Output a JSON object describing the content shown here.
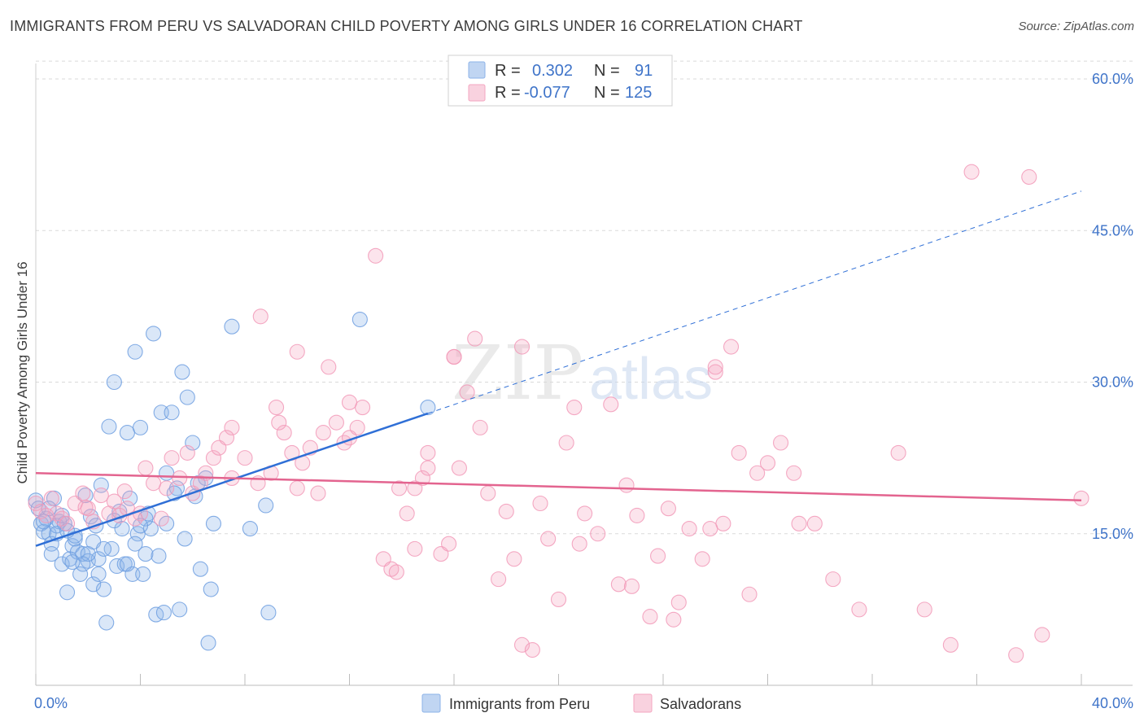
{
  "title": "IMMIGRANTS FROM PERU VS SALVADORAN CHILD POVERTY AMONG GIRLS UNDER 16 CORRELATION CHART",
  "source": "Source: ZipAtlas.com",
  "watermark": {
    "zip": "ZIP",
    "atlas": "atlas"
  },
  "legend_top": {
    "rows": [
      {
        "r_label": "R =",
        "r_value": "0.302",
        "n_label": "N =",
        "n_value": "91",
        "color": "#8db3e8"
      },
      {
        "r_label": "R =",
        "r_value": "-0.077",
        "n_label": "N =",
        "n_value": "125",
        "color": "#f4a6c0"
      }
    ]
  },
  "chart_data": {
    "type": "scatter",
    "xlabel": "",
    "ylabel": "Child Poverty Among Girls Under 16",
    "xlim": [
      0,
      40
    ],
    "ylim": [
      0,
      62
    ],
    "x_tick_labels": [
      {
        "value": 0,
        "label": "0.0%"
      },
      {
        "value": 40,
        "label": "40.0%"
      }
    ],
    "y_tick_labels": [
      {
        "value": 15,
        "label": "15.0%"
      },
      {
        "value": 30,
        "label": "30.0%"
      },
      {
        "value": 45,
        "label": "45.0%"
      },
      {
        "value": 60,
        "label": "60.0%"
      }
    ],
    "grid": true,
    "legend_position": "bottom",
    "series": [
      {
        "name": "Immigrants from Peru",
        "color": "#6f9fe0",
        "line_color": "#2f6fd6",
        "trend": {
          "x0": 0.0,
          "y0": 13.8,
          "x1": 15.0,
          "y1": 26.9,
          "dash_x1": 40.0,
          "dash_y1": 48.9
        },
        "points": [
          [
            0.0,
            18.3
          ],
          [
            0.1,
            17.5
          ],
          [
            0.2,
            16.0
          ],
          [
            0.3,
            15.2
          ],
          [
            0.4,
            16.5
          ],
          [
            0.5,
            15.0
          ],
          [
            0.6,
            14.0
          ],
          [
            0.7,
            18.5
          ],
          [
            0.8,
            15.8
          ],
          [
            0.9,
            16.2
          ],
          [
            1.0,
            12.0
          ],
          [
            1.1,
            16.0
          ],
          [
            1.2,
            9.2
          ],
          [
            1.3,
            12.5
          ],
          [
            1.4,
            13.8
          ],
          [
            1.5,
            14.5
          ],
          [
            1.6,
            13.2
          ],
          [
            1.7,
            11.0
          ],
          [
            1.8,
            13.0
          ],
          [
            1.9,
            18.8
          ],
          [
            2.0,
            12.3
          ],
          [
            2.1,
            16.7
          ],
          [
            2.2,
            10.0
          ],
          [
            2.3,
            15.8
          ],
          [
            2.4,
            12.5
          ],
          [
            2.5,
            19.8
          ],
          [
            2.6,
            9.5
          ],
          [
            2.7,
            6.2
          ],
          [
            2.8,
            25.6
          ],
          [
            2.9,
            13.5
          ],
          [
            3.0,
            30.0
          ],
          [
            3.1,
            11.8
          ],
          [
            3.2,
            17.2
          ],
          [
            3.3,
            15.5
          ],
          [
            3.4,
            12.0
          ],
          [
            3.5,
            25.0
          ],
          [
            3.6,
            18.5
          ],
          [
            3.7,
            11.0
          ],
          [
            3.8,
            33.0
          ],
          [
            3.9,
            15.0
          ],
          [
            4.0,
            25.5
          ],
          [
            4.1,
            11.0
          ],
          [
            4.2,
            13.0
          ],
          [
            4.3,
            17.0
          ],
          [
            4.4,
            15.5
          ],
          [
            4.5,
            34.8
          ],
          [
            4.6,
            7.0
          ],
          [
            4.7,
            12.8
          ],
          [
            4.8,
            27.0
          ],
          [
            4.9,
            7.2
          ],
          [
            5.0,
            21.0
          ],
          [
            5.2,
            27.0
          ],
          [
            5.4,
            19.5
          ],
          [
            5.5,
            7.5
          ],
          [
            5.6,
            31.0
          ],
          [
            5.7,
            14.5
          ],
          [
            5.8,
            28.5
          ],
          [
            6.0,
            24.0
          ],
          [
            6.1,
            18.7
          ],
          [
            6.3,
            11.5
          ],
          [
            6.5,
            20.5
          ],
          [
            6.6,
            4.2
          ],
          [
            6.7,
            9.5
          ],
          [
            6.8,
            16.0
          ],
          [
            7.5,
            35.5
          ],
          [
            8.2,
            15.5
          ],
          [
            8.8,
            17.8
          ],
          [
            8.9,
            7.2
          ],
          [
            12.4,
            36.2
          ],
          [
            15.0,
            27.5
          ],
          [
            1.0,
            16.8
          ],
          [
            1.5,
            14.8
          ],
          [
            2.0,
            13.0
          ],
          [
            0.5,
            17.5
          ],
          [
            0.8,
            15.0
          ],
          [
            1.8,
            12.0
          ],
          [
            2.4,
            11.0
          ],
          [
            3.5,
            12.0
          ],
          [
            4.2,
            16.5
          ],
          [
            5.0,
            16.0
          ],
          [
            0.3,
            16.2
          ],
          [
            1.2,
            15.3
          ],
          [
            2.2,
            14.2
          ],
          [
            3.0,
            16.3
          ],
          [
            4.0,
            15.8
          ],
          [
            0.6,
            13.0
          ],
          [
            1.4,
            12.2
          ],
          [
            2.6,
            13.5
          ],
          [
            3.8,
            14.0
          ],
          [
            5.3,
            19.0
          ],
          [
            6.2,
            20.0
          ]
        ]
      },
      {
        "name": "Salvadorans",
        "color": "#f29ab8",
        "line_color": "#e3648f",
        "trend": {
          "x0": 0.0,
          "y0": 21.0,
          "x1": 40.0,
          "y1": 18.3
        },
        "points": [
          [
            0.0,
            18.0
          ],
          [
            0.2,
            17.2
          ],
          [
            0.4,
            16.8
          ],
          [
            0.6,
            18.5
          ],
          [
            0.8,
            17.0
          ],
          [
            1.0,
            16.5
          ],
          [
            1.2,
            16.0
          ],
          [
            1.5,
            18.0
          ],
          [
            1.8,
            19.0
          ],
          [
            2.0,
            17.5
          ],
          [
            2.2,
            16.2
          ],
          [
            2.5,
            18.8
          ],
          [
            2.8,
            17.0
          ],
          [
            3.0,
            18.2
          ],
          [
            3.2,
            16.8
          ],
          [
            3.5,
            17.5
          ],
          [
            3.8,
            16.5
          ],
          [
            4.0,
            17.0
          ],
          [
            4.2,
            21.5
          ],
          [
            4.5,
            20.0
          ],
          [
            4.8,
            16.5
          ],
          [
            5.0,
            19.5
          ],
          [
            5.2,
            22.5
          ],
          [
            5.5,
            20.5
          ],
          [
            5.8,
            23.0
          ],
          [
            6.0,
            19.0
          ],
          [
            6.3,
            20.0
          ],
          [
            6.5,
            21.0
          ],
          [
            6.8,
            22.5
          ],
          [
            7.0,
            23.5
          ],
          [
            7.3,
            24.5
          ],
          [
            7.5,
            25.5
          ],
          [
            8.0,
            22.5
          ],
          [
            8.5,
            20.0
          ],
          [
            9.0,
            21.0
          ],
          [
            9.2,
            27.5
          ],
          [
            9.5,
            25.0
          ],
          [
            9.8,
            23.0
          ],
          [
            10.0,
            19.5
          ],
          [
            10.2,
            22.0
          ],
          [
            10.5,
            23.5
          ],
          [
            10.8,
            19.0
          ],
          [
            11.0,
            25.0
          ],
          [
            11.2,
            31.5
          ],
          [
            11.5,
            26.0
          ],
          [
            11.8,
            24.0
          ],
          [
            12.0,
            24.5
          ],
          [
            12.3,
            25.5
          ],
          [
            12.5,
            27.5
          ],
          [
            13.0,
            42.5
          ],
          [
            13.3,
            12.5
          ],
          [
            13.6,
            11.5
          ],
          [
            13.9,
            19.5
          ],
          [
            14.2,
            17.0
          ],
          [
            14.5,
            19.5
          ],
          [
            14.8,
            20.5
          ],
          [
            15.0,
            23.0
          ],
          [
            15.5,
            13.0
          ],
          [
            15.8,
            14.0
          ],
          [
            16.0,
            32.5
          ],
          [
            16.2,
            21.5
          ],
          [
            16.5,
            29.0
          ],
          [
            16.8,
            34.3
          ],
          [
            17.0,
            25.5
          ],
          [
            17.3,
            19.0
          ],
          [
            17.7,
            10.5
          ],
          [
            18.0,
            17.2
          ],
          [
            18.3,
            12.5
          ],
          [
            18.6,
            4.0
          ],
          [
            19.0,
            3.5
          ],
          [
            19.3,
            18.0
          ],
          [
            19.6,
            14.5
          ],
          [
            20.0,
            8.5
          ],
          [
            20.3,
            24.0
          ],
          [
            20.6,
            27.5
          ],
          [
            21.0,
            17.0
          ],
          [
            21.5,
            15.0
          ],
          [
            22.0,
            27.8
          ],
          [
            22.3,
            10.0
          ],
          [
            22.6,
            19.8
          ],
          [
            23.0,
            16.8
          ],
          [
            23.5,
            6.8
          ],
          [
            23.8,
            12.8
          ],
          [
            24.2,
            17.5
          ],
          [
            24.6,
            8.2
          ],
          [
            25.0,
            15.5
          ],
          [
            25.5,
            12.5
          ],
          [
            26.0,
            31.0
          ],
          [
            26.3,
            16.0
          ],
          [
            26.6,
            33.5
          ],
          [
            26.9,
            23.0
          ],
          [
            27.3,
            9.0
          ],
          [
            27.6,
            21.0
          ],
          [
            28.0,
            22.0
          ],
          [
            28.5,
            24.0
          ],
          [
            29.0,
            21.0
          ],
          [
            29.2,
            16.0
          ],
          [
            29.8,
            16.0
          ],
          [
            30.5,
            10.5
          ],
          [
            31.5,
            7.5
          ],
          [
            33.0,
            23.0
          ],
          [
            34.0,
            7.5
          ],
          [
            35.0,
            4.0
          ],
          [
            35.8,
            50.8
          ],
          [
            37.5,
            3.0
          ],
          [
            38.0,
            50.3
          ],
          [
            38.5,
            5.0
          ],
          [
            40.0,
            18.5
          ],
          [
            7.5,
            20.5
          ],
          [
            8.6,
            36.5
          ],
          [
            10.0,
            33.0
          ],
          [
            16.0,
            32.5
          ],
          [
            18.6,
            33.5
          ],
          [
            26.0,
            31.5
          ],
          [
            12.0,
            28.0
          ],
          [
            15.0,
            21.5
          ],
          [
            13.8,
            11.2
          ],
          [
            20.8,
            14.0
          ],
          [
            22.8,
            9.8
          ],
          [
            25.8,
            15.5
          ],
          [
            9.3,
            26.0
          ],
          [
            14.5,
            13.5
          ],
          [
            24.4,
            6.5
          ],
          [
            1.9,
            17.6
          ],
          [
            3.4,
            19.2
          ]
        ]
      }
    ]
  }
}
